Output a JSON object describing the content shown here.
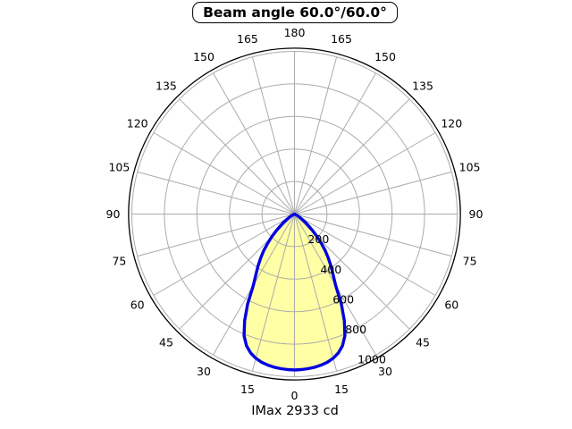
{
  "chart_data": {
    "type": "line",
    "subtype": "polar-intensity-diagram",
    "title": "Beam angle 60.0°/60.0°",
    "footer": "IMax 2933 cd",
    "imax_cd": 2933,
    "beam_angle_deg": [
      60.0,
      60.0
    ],
    "angle_ticks_deg": [
      0,
      15,
      30,
      45,
      60,
      75,
      90,
      105,
      120,
      135,
      150,
      165,
      180
    ],
    "radial_ticks": [
      200,
      400,
      600,
      800,
      1000
    ],
    "rmax": 1020,
    "grid_on": true,
    "series": [
      {
        "name": "luminous-intensity",
        "symmetric_about_vertical": true,
        "points_angle_value": [
          [
            0,
            958
          ],
          [
            2.5,
            957
          ],
          [
            5,
            954
          ],
          [
            7.5,
            950
          ],
          [
            10,
            943
          ],
          [
            12.5,
            933
          ],
          [
            15,
            918
          ],
          [
            17.5,
            896
          ],
          [
            20,
            862
          ],
          [
            22.5,
            810
          ],
          [
            25,
            725
          ],
          [
            27.5,
            625
          ],
          [
            30,
            505
          ],
          [
            32.5,
            442
          ],
          [
            35,
            392
          ],
          [
            37.5,
            342
          ],
          [
            40,
            295
          ],
          [
            42.5,
            245
          ],
          [
            45,
            198
          ],
          [
            47.5,
            152
          ],
          [
            50,
            115
          ],
          [
            52.5,
            85
          ],
          [
            55,
            60
          ],
          [
            57.5,
            42
          ],
          [
            60,
            27
          ],
          [
            62.5,
            14
          ],
          [
            65,
            5
          ],
          [
            67.5,
            0
          ]
        ]
      }
    ],
    "colors": {
      "curve": "#0000e0",
      "fill": "#ffffa6",
      "grid": "#ababab",
      "outer_circle": "#000000",
      "text": "#000000",
      "background": "#ffffff"
    }
  }
}
